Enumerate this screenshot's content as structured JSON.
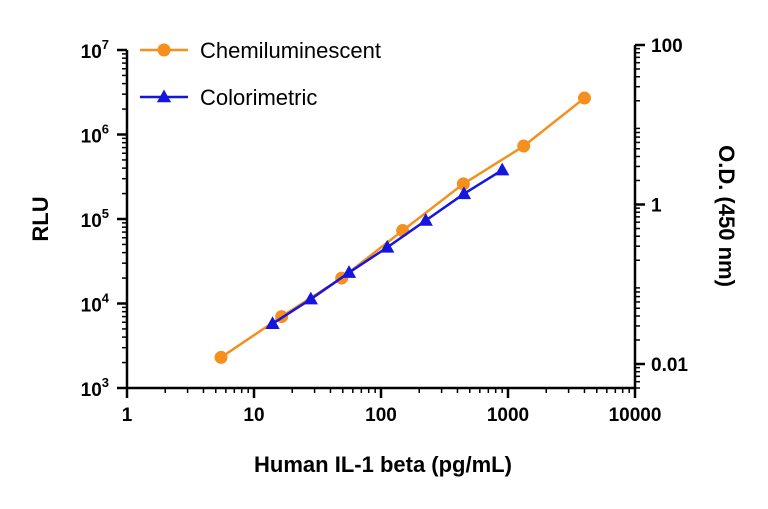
{
  "chart_data": {
    "type": "line",
    "xlabel": "Human IL-1 beta (pg/mL)",
    "ylabel": "RLU",
    "y2label": "O.D. (450 nm)",
    "x_scale": "log",
    "y_scale": "log",
    "y2_scale": "log",
    "xlim": [
      1,
      10000
    ],
    "ylim": [
      1000,
      10000000
    ],
    "y2lim": [
      0.005,
      100
    ],
    "x_ticks": [
      {
        "value": 1,
        "label": "1"
      },
      {
        "value": 10,
        "label": "10"
      },
      {
        "value": 100,
        "label": "100"
      },
      {
        "value": 1000,
        "label": "1000"
      },
      {
        "value": 10000,
        "label": "10000"
      }
    ],
    "y_ticks": [
      {
        "value": 1000,
        "base": "10",
        "exp": "3"
      },
      {
        "value": 10000,
        "base": "10",
        "exp": "4"
      },
      {
        "value": 100000,
        "base": "10",
        "exp": "5"
      },
      {
        "value": 1000000,
        "base": "10",
        "exp": "6"
      },
      {
        "value": 10000000,
        "base": "10",
        "exp": "7"
      }
    ],
    "y2_ticks": [
      {
        "value": 0.01,
        "label": "0.01"
      },
      {
        "value": 1,
        "label": "1"
      },
      {
        "value": 100,
        "label": "100"
      }
    ],
    "grid": false,
    "legend_position": "top-left",
    "series": [
      {
        "name": "Chemiluminescent",
        "axis": "left",
        "color": "#F5901E",
        "marker": "circle",
        "x": [
          5.5,
          16.5,
          49,
          148,
          445,
          1330,
          4000
        ],
        "y": [
          2300,
          7000,
          20000,
          73000,
          260000,
          730000,
          2700000
        ]
      },
      {
        "name": "Colorimetric",
        "axis": "right",
        "color": "#1515E0",
        "marker": "triangle",
        "x": [
          14,
          28,
          56,
          112,
          225,
          450,
          900
        ],
        "y": [
          0.032,
          0.065,
          0.14,
          0.29,
          0.63,
          1.36,
          2.7
        ]
      }
    ]
  }
}
